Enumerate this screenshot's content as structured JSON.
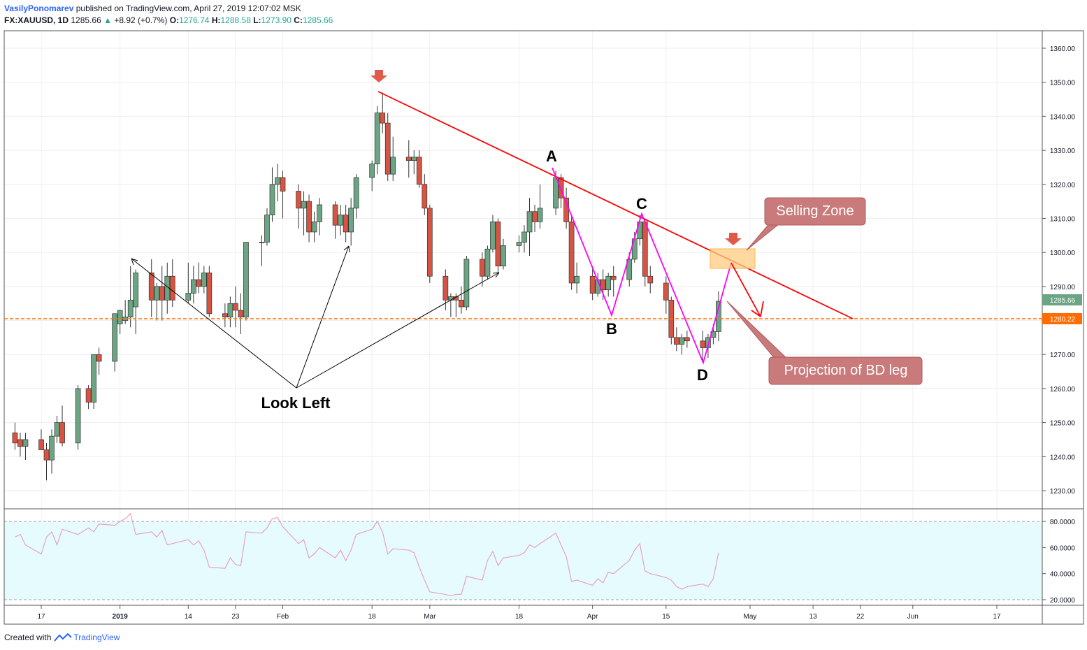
{
  "header": {
    "author": "VasilyPonomarev",
    "published": "published on TradingView.com, April 27, 2019 12:07:02 MSK",
    "symbol": "FX:XAUUSD, 1D",
    "last": "1285.66",
    "change": "+8.92 (+0.7%)",
    "o_label": "O:",
    "o_val": "1276.74",
    "h_label": "H:",
    "h_val": "1288.58",
    "l_label": "L:",
    "l_val": "1273.90",
    "c_label": "C:",
    "c_val": "1285.66"
  },
  "footer": {
    "created": "Created with",
    "brand": "TradingView"
  },
  "colors": {
    "up": "#6ba583",
    "down": "#d75442",
    "trend": "#ff0000",
    "pattern": "#ff00ff",
    "level": "#ff6d00",
    "rsi": "#e8a0c8",
    "rsi_bg": "#e6fbfd",
    "callout": "#c97a7a"
  },
  "annotations": {
    "A": "A",
    "B": "B",
    "C": "C",
    "D": "D",
    "look_left": "Look Left",
    "selling_zone": "Selling Zone",
    "projection": "Projection of BD leg"
  },
  "chart_data": [
    {
      "type": "candlestick",
      "title": "FX:XAUUSD, 1D",
      "y_ticks": [
        1230,
        1240,
        1250,
        1260,
        1270,
        1280,
        1290,
        1300,
        1310,
        1320,
        1330,
        1340,
        1350,
        1360
      ],
      "y_tick_labels": [
        "1230.00",
        "1240.00",
        "1250.00",
        "1260.00",
        "1270.00",
        "1280.00",
        "1290.00",
        "1300.00",
        "1310.00",
        "1320.00",
        "1330.00",
        "1340.00",
        "1350.00",
        "1360.00"
      ],
      "ylim": [
        1225,
        1365
      ],
      "x_tick_labels": [
        "17",
        "2019",
        "14",
        "23",
        "Feb",
        "18",
        "Mar",
        "18",
        "Apr",
        "15",
        "May",
        "13",
        "22",
        "Jun",
        "17"
      ],
      "x_tick_dates": [
        "2018-12-17",
        "2019-01-01",
        "2019-01-14",
        "2019-01-23",
        "2019-02-01",
        "2019-02-18",
        "2019-03-01",
        "2019-03-18",
        "2019-04-01",
        "2019-04-15",
        "2019-05-01",
        "2019-05-13",
        "2019-05-22",
        "2019-06-01",
        "2019-06-17"
      ],
      "last_price": "1285.66",
      "level_price": "1280.22",
      "candles": [
        {
          "d": "2018-12-12",
          "o": 1247,
          "h": 1250,
          "l": 1242,
          "c": 1244
        },
        {
          "d": "2018-12-13",
          "o": 1245,
          "h": 1247,
          "l": 1240,
          "c": 1243
        },
        {
          "d": "2018-12-14",
          "o": 1243,
          "h": 1247,
          "l": 1239,
          "c": 1245
        },
        {
          "d": "2018-12-17",
          "o": 1245,
          "h": 1248,
          "l": 1243,
          "c": 1242
        },
        {
          "d": "2018-12-18",
          "o": 1242,
          "h": 1244,
          "l": 1233,
          "c": 1239
        },
        {
          "d": "2018-12-19",
          "o": 1239,
          "h": 1248,
          "l": 1235,
          "c": 1246
        },
        {
          "d": "2018-12-20",
          "o": 1246,
          "h": 1252,
          "l": 1244,
          "c": 1250
        },
        {
          "d": "2018-12-21",
          "o": 1250,
          "h": 1255,
          "l": 1243,
          "c": 1244
        },
        {
          "d": "2018-12-24",
          "o": 1244,
          "h": 1261,
          "l": 1242,
          "c": 1260
        },
        {
          "d": "2018-12-26",
          "o": 1260,
          "h": 1261,
          "l": 1254,
          "c": 1256
        },
        {
          "d": "2018-12-27",
          "o": 1256,
          "h": 1270,
          "l": 1254,
          "c": 1270
        },
        {
          "d": "2018-12-28",
          "o": 1270,
          "h": 1272,
          "l": 1264,
          "c": 1268
        },
        {
          "d": "2018-12-31",
          "o": 1268,
          "h": 1282,
          "l": 1265,
          "c": 1282
        },
        {
          "d": "2019-01-01",
          "o": 1279,
          "h": 1283,
          "l": 1276,
          "c": 1283
        },
        {
          "d": "2019-01-02",
          "o": 1280,
          "h": 1286,
          "l": 1279,
          "c": 1281
        },
        {
          "d": "2019-01-03",
          "o": 1281,
          "h": 1296,
          "l": 1278,
          "c": 1286
        },
        {
          "d": "2019-01-04",
          "o": 1284,
          "h": 1295,
          "l": 1276,
          "c": 1294
        },
        {
          "d": "2019-01-07",
          "o": 1294,
          "h": 1298,
          "l": 1281,
          "c": 1286
        },
        {
          "d": "2019-01-08",
          "o": 1286,
          "h": 1291,
          "l": 1280,
          "c": 1290
        },
        {
          "d": "2019-01-09",
          "o": 1290,
          "h": 1296,
          "l": 1280,
          "c": 1286
        },
        {
          "d": "2019-01-10",
          "o": 1286,
          "h": 1297,
          "l": 1282,
          "c": 1293
        },
        {
          "d": "2019-01-11",
          "o": 1293,
          "h": 1298,
          "l": 1284,
          "c": 1286
        },
        {
          "d": "2019-01-14",
          "o": 1286,
          "h": 1297,
          "l": 1285,
          "c": 1288
        },
        {
          "d": "2019-01-15",
          "o": 1288,
          "h": 1296,
          "l": 1285,
          "c": 1292
        },
        {
          "d": "2019-01-16",
          "o": 1292,
          "h": 1297,
          "l": 1288,
          "c": 1290
        },
        {
          "d": "2019-01-17",
          "o": 1290,
          "h": 1296,
          "l": 1288,
          "c": 1294
        },
        {
          "d": "2019-01-18",
          "o": 1294,
          "h": 1296,
          "l": 1281,
          "c": 1282
        },
        {
          "d": "2019-01-21",
          "o": 1282,
          "h": 1285,
          "l": 1278,
          "c": 1281
        },
        {
          "d": "2019-01-22",
          "o": 1281,
          "h": 1287,
          "l": 1278,
          "c": 1285
        },
        {
          "d": "2019-01-23",
          "o": 1285,
          "h": 1290,
          "l": 1278,
          "c": 1283
        },
        {
          "d": "2019-01-24",
          "o": 1283,
          "h": 1288,
          "l": 1276,
          "c": 1281
        },
        {
          "d": "2019-01-25",
          "o": 1281,
          "h": 1303,
          "l": 1280,
          "c": 1303
        },
        {
          "d": "2019-01-28",
          "o": 1303,
          "h": 1305,
          "l": 1296,
          "c": 1303
        },
        {
          "d": "2019-01-29",
          "o": 1303,
          "h": 1313,
          "l": 1302,
          "c": 1311
        },
        {
          "d": "2019-01-30",
          "o": 1311,
          "h": 1325,
          "l": 1309,
          "c": 1320
        },
        {
          "d": "2019-01-31",
          "o": 1320,
          "h": 1326,
          "l": 1315,
          "c": 1322
        },
        {
          "d": "2019-02-01",
          "o": 1322,
          "h": 1324,
          "l": 1310,
          "c": 1318
        },
        {
          "d": "2019-02-04",
          "o": 1318,
          "h": 1320,
          "l": 1307,
          "c": 1313
        },
        {
          "d": "2019-02-05",
          "o": 1313,
          "h": 1318,
          "l": 1305,
          "c": 1315
        },
        {
          "d": "2019-02-06",
          "o": 1315,
          "h": 1317,
          "l": 1303,
          "c": 1306
        },
        {
          "d": "2019-02-07",
          "o": 1306,
          "h": 1312,
          "l": 1303,
          "c": 1309
        },
        {
          "d": "2019-02-08",
          "o": 1309,
          "h": 1316,
          "l": 1305,
          "c": 1314
        },
        {
          "d": "2019-02-11",
          "o": 1314,
          "h": 1315,
          "l": 1304,
          "c": 1308
        },
        {
          "d": "2019-02-12",
          "o": 1308,
          "h": 1314,
          "l": 1305,
          "c": 1311
        },
        {
          "d": "2019-02-13",
          "o": 1311,
          "h": 1314,
          "l": 1303,
          "c": 1306
        },
        {
          "d": "2019-02-14",
          "o": 1306,
          "h": 1316,
          "l": 1302,
          "c": 1313
        },
        {
          "d": "2019-02-15",
          "o": 1313,
          "h": 1323,
          "l": 1310,
          "c": 1322
        },
        {
          "d": "2019-02-18",
          "o": 1322,
          "h": 1327,
          "l": 1318,
          "c": 1326
        },
        {
          "d": "2019-02-19",
          "o": 1326,
          "h": 1343,
          "l": 1323,
          "c": 1341
        },
        {
          "d": "2019-02-20",
          "o": 1341,
          "h": 1347,
          "l": 1335,
          "c": 1338
        },
        {
          "d": "2019-02-21",
          "o": 1338,
          "h": 1341,
          "l": 1321,
          "c": 1323
        },
        {
          "d": "2019-02-22",
          "o": 1323,
          "h": 1334,
          "l": 1321,
          "c": 1328
        },
        {
          "d": "2019-02-25",
          "o": 1328,
          "h": 1333,
          "l": 1322,
          "c": 1327
        },
        {
          "d": "2019-02-26",
          "o": 1327,
          "h": 1330,
          "l": 1323,
          "c": 1328
        },
        {
          "d": "2019-02-27",
          "o": 1328,
          "h": 1330,
          "l": 1319,
          "c": 1320
        },
        {
          "d": "2019-02-28",
          "o": 1320,
          "h": 1323,
          "l": 1311,
          "c": 1313
        },
        {
          "d": "2019-03-01",
          "o": 1313,
          "h": 1314,
          "l": 1291,
          "c": 1293
        },
        {
          "d": "2019-03-04",
          "o": 1293,
          "h": 1295,
          "l": 1283,
          "c": 1286
        },
        {
          "d": "2019-03-05",
          "o": 1286,
          "h": 1288,
          "l": 1281,
          "c": 1287
        },
        {
          "d": "2019-03-06",
          "o": 1287,
          "h": 1288,
          "l": 1281,
          "c": 1286
        },
        {
          "d": "2019-03-07",
          "o": 1286,
          "h": 1290,
          "l": 1282,
          "c": 1284
        },
        {
          "d": "2019-03-08",
          "o": 1284,
          "h": 1299,
          "l": 1283,
          "c": 1298
        },
        {
          "d": "2019-03-11",
          "o": 1298,
          "h": 1300,
          "l": 1290,
          "c": 1293
        },
        {
          "d": "2019-03-12",
          "o": 1293,
          "h": 1302,
          "l": 1292,
          "c": 1301
        },
        {
          "d": "2019-03-13",
          "o": 1301,
          "h": 1311,
          "l": 1300,
          "c": 1309
        },
        {
          "d": "2019-03-14",
          "o": 1309,
          "h": 1310,
          "l": 1294,
          "c": 1296
        },
        {
          "d": "2019-03-15",
          "o": 1296,
          "h": 1304,
          "l": 1295,
          "c": 1302
        },
        {
          "d": "2019-03-18",
          "o": 1302,
          "h": 1305,
          "l": 1300,
          "c": 1303
        },
        {
          "d": "2019-03-19",
          "o": 1303,
          "h": 1308,
          "l": 1300,
          "c": 1306
        },
        {
          "d": "2019-03-20",
          "o": 1306,
          "h": 1316,
          "l": 1299,
          "c": 1312
        },
        {
          "d": "2019-03-21",
          "o": 1312,
          "h": 1314,
          "l": 1306,
          "c": 1309
        },
        {
          "d": "2019-03-22",
          "o": 1309,
          "h": 1320,
          "l": 1307,
          "c": 1313
        },
        {
          "d": "2019-03-25",
          "o": 1313,
          "h": 1324,
          "l": 1311,
          "c": 1322
        },
        {
          "d": "2019-03-26",
          "o": 1322,
          "h": 1323,
          "l": 1313,
          "c": 1316
        },
        {
          "d": "2019-03-27",
          "o": 1316,
          "h": 1319,
          "l": 1307,
          "c": 1309
        },
        {
          "d": "2019-03-28",
          "o": 1309,
          "h": 1311,
          "l": 1289,
          "c": 1291
        },
        {
          "d": "2019-03-29",
          "o": 1291,
          "h": 1297,
          "l": 1288,
          "c": 1293
        },
        {
          "d": "2019-04-01",
          "o": 1293,
          "h": 1296,
          "l": 1286,
          "c": 1288
        },
        {
          "d": "2019-04-02",
          "o": 1288,
          "h": 1294,
          "l": 1287,
          "c": 1292
        },
        {
          "d": "2019-04-03",
          "o": 1292,
          "h": 1295,
          "l": 1286,
          "c": 1289
        },
        {
          "d": "2019-04-04",
          "o": 1289,
          "h": 1294,
          "l": 1287,
          "c": 1293
        },
        {
          "d": "2019-04-05",
          "o": 1293,
          "h": 1296,
          "l": 1287,
          "c": 1292
        },
        {
          "d": "2019-04-08",
          "o": 1292,
          "h": 1300,
          "l": 1290,
          "c": 1298
        },
        {
          "d": "2019-04-09",
          "o": 1298,
          "h": 1306,
          "l": 1297,
          "c": 1304
        },
        {
          "d": "2019-04-10",
          "o": 1304,
          "h": 1311,
          "l": 1302,
          "c": 1309
        },
        {
          "d": "2019-04-11",
          "o": 1309,
          "h": 1310,
          "l": 1290,
          "c": 1293
        },
        {
          "d": "2019-04-12",
          "o": 1293,
          "h": 1296,
          "l": 1288,
          "c": 1291
        },
        {
          "d": "2019-04-15",
          "o": 1291,
          "h": 1293,
          "l": 1282,
          "c": 1286
        },
        {
          "d": "2019-04-16",
          "o": 1286,
          "h": 1287,
          "l": 1273,
          "c": 1275
        },
        {
          "d": "2019-04-17",
          "o": 1275,
          "h": 1278,
          "l": 1271,
          "c": 1273
        },
        {
          "d": "2019-04-18",
          "o": 1273,
          "h": 1276,
          "l": 1270,
          "c": 1275
        },
        {
          "d": "2019-04-19",
          "o": 1275,
          "h": 1277,
          "l": 1272,
          "c": 1274
        },
        {
          "d": "2019-04-22",
          "o": 1274,
          "h": 1277,
          "l": 1268,
          "c": 1272
        },
        {
          "d": "2019-04-23",
          "o": 1272,
          "h": 1276,
          "l": 1269,
          "c": 1275
        },
        {
          "d": "2019-04-24",
          "o": 1275,
          "h": 1279,
          "l": 1273,
          "c": 1276.74
        },
        {
          "d": "2019-04-25",
          "o": 1276.74,
          "h": 1288.58,
          "l": 1273.9,
          "c": 1285.66
        }
      ]
    },
    {
      "type": "line",
      "title": "",
      "ylim": [
        18,
        88
      ],
      "y_ticks": [
        20,
        40,
        60,
        80
      ],
      "y_tick_labels": [
        "20.0000",
        "40.0000",
        "60.0000",
        "80.0000"
      ],
      "bands": [
        20,
        80
      ],
      "values": [
        68,
        70,
        62,
        55,
        68,
        72,
        62,
        74,
        70,
        75,
        72,
        78,
        77,
        80,
        82,
        86,
        70,
        72,
        68,
        73,
        62,
        63,
        66,
        62,
        65,
        58,
        45,
        44,
        52,
        47,
        46,
        72,
        71,
        75,
        82,
        83,
        76,
        63,
        66,
        52,
        55,
        60,
        52,
        58,
        50,
        58,
        70,
        74,
        80,
        72,
        55,
        59,
        58,
        56,
        45,
        35,
        26,
        24,
        23,
        24,
        24,
        38,
        35,
        50,
        57,
        46,
        52,
        54,
        56,
        62,
        60,
        63,
        71,
        62,
        53,
        34,
        35,
        31,
        36,
        33,
        41,
        40,
        50,
        58,
        63,
        42,
        40,
        37,
        35,
        30,
        28,
        30,
        32,
        30,
        36,
        56
      ]
    }
  ]
}
